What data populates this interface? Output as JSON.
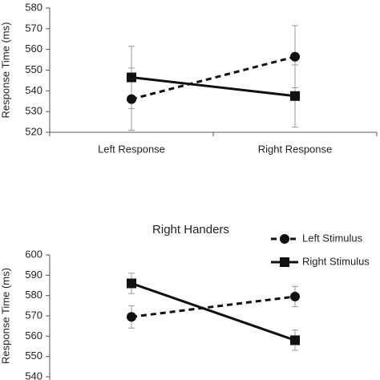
{
  "chart_data": [
    {
      "type": "line",
      "y_label": "Response Time (ms)",
      "categories": [
        "Left Response",
        "Right Response"
      ],
      "series": [
        {
          "color": "#111111",
          "dash": true,
          "marker": "circle",
          "values": [
            536,
            556.5
          ],
          "errors": [
            15,
            15
          ]
        },
        {
          "color": "#111111",
          "dash": false,
          "marker": "square",
          "values": [
            546.5,
            537.5
          ],
          "errors": [
            15,
            15
          ]
        }
      ],
      "ylim": [
        520,
        580
      ],
      "yticks": [
        520,
        530,
        540,
        550,
        560,
        570,
        580
      ]
    },
    {
      "type": "line",
      "title": "Right Handers",
      "y_label": "Response Time (ms)",
      "categories": [
        null,
        null
      ],
      "series": [
        {
          "name": "Left Stimulus",
          "color": "#111111",
          "dash": true,
          "marker": "circle",
          "values": [
            569.5,
            579.5
          ],
          "errors": [
            5.5,
            5
          ]
        },
        {
          "name": "Right Stimulus",
          "color": "#111111",
          "dash": false,
          "marker": "square",
          "values": [
            586,
            558
          ],
          "errors": [
            5,
            5
          ]
        }
      ],
      "ylim": [
        540,
        600
      ],
      "yticks": [
        540,
        550,
        560,
        570,
        580,
        590,
        600
      ],
      "legend": "right"
    }
  ]
}
